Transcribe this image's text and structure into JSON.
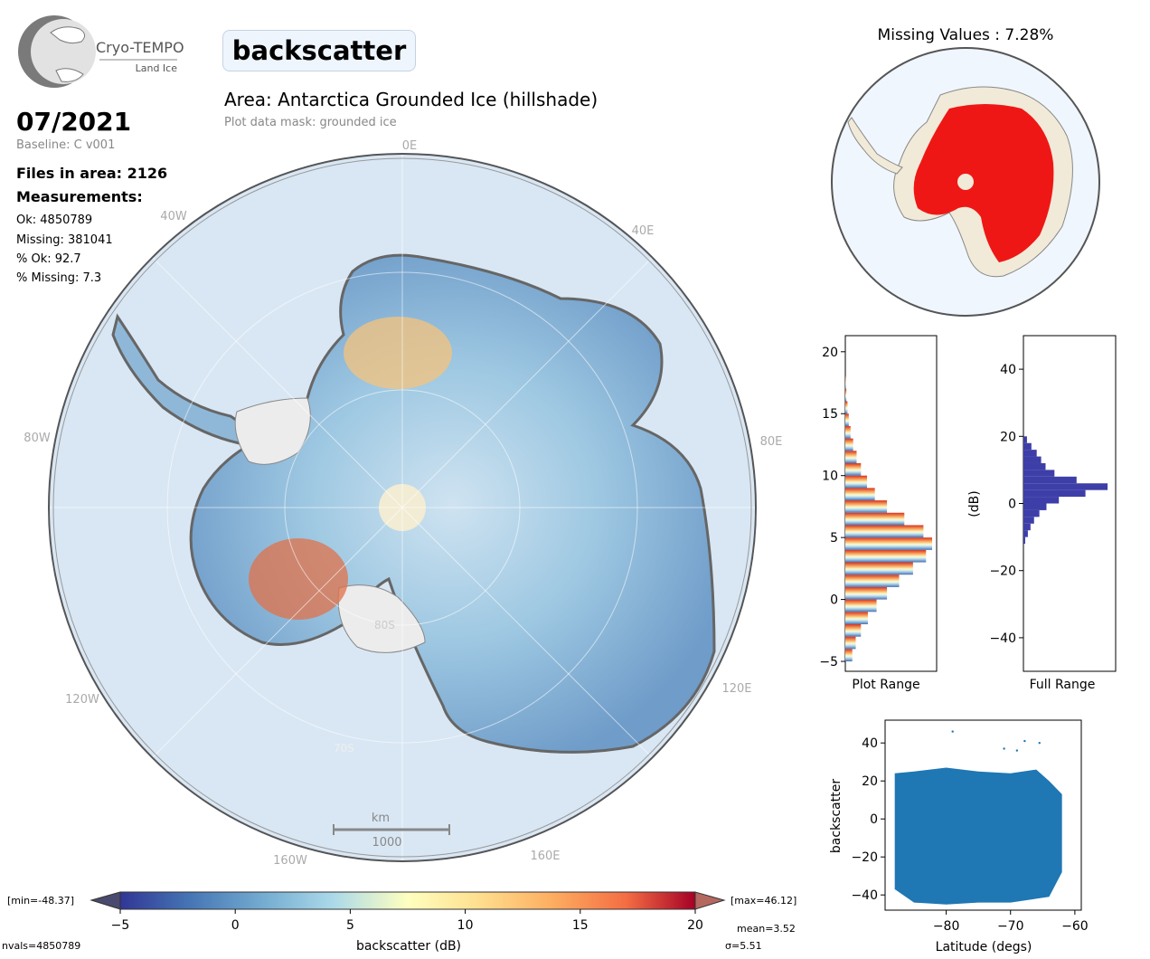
{
  "logo": {
    "name": "Cryo-TEMPO",
    "sub": "Land Ice"
  },
  "header": {
    "parameter": "backscatter",
    "area": "Area: Antarctica Grounded Ice (hillshade)",
    "mask": "Plot data mask: grounded ice"
  },
  "info": {
    "date": "07/2021",
    "baseline": "Baseline: C v001",
    "files": "Files in area: 2126",
    "measurements": "Measurements:",
    "ok": "Ok: 4850789",
    "missing": "Missing: 381041",
    "pct_ok": "% Ok: 92.7",
    "pct_missing": "% Missing: 7.3"
  },
  "map": {
    "lon_labels": [
      "0E",
      "40E",
      "80E",
      "120E",
      "160E",
      "160W",
      "120W",
      "80W",
      "40W"
    ],
    "lat_labels": [
      "80S",
      "70S"
    ],
    "scale_unit": "km",
    "scale_value": "1000"
  },
  "missing_map": {
    "title": "Missing Values : 7.28%"
  },
  "colorbar": {
    "min_label": "[min=-48.37]",
    "max_label": "[max=46.12]",
    "ticks": [
      "-5",
      "0",
      "5",
      "10",
      "15",
      "20"
    ],
    "label": "backscatter (dB)",
    "nvals": "nvals=4850789",
    "mean": "mean=3.52",
    "sigma": "σ=5.51"
  },
  "chart_data": [
    {
      "type": "bar",
      "title": "",
      "xlabel": "Plot Range",
      "ylabel": "",
      "orientation": "horizontal",
      "ylim": [
        -5.8,
        21.3
      ],
      "yticks": [
        -5,
        0,
        5,
        10,
        15,
        20
      ],
      "bins_y": [
        -5,
        -4,
        -3,
        -2,
        -1,
        0,
        1,
        2,
        3,
        4,
        5,
        6,
        7,
        8,
        9,
        10,
        11,
        12,
        13,
        14,
        15,
        16,
        17
      ],
      "counts": [
        0.08,
        0.12,
        0.18,
        0.26,
        0.36,
        0.48,
        0.62,
        0.78,
        0.93,
        1.0,
        0.9,
        0.68,
        0.48,
        0.34,
        0.25,
        0.18,
        0.13,
        0.09,
        0.06,
        0.04,
        0.025,
        0.012,
        0.004
      ]
    },
    {
      "type": "bar",
      "title": "",
      "xlabel": "Full Range",
      "ylabel": "(dB)",
      "orientation": "horizontal",
      "ylim": [
        -50,
        50
      ],
      "yticks": [
        -40,
        -20,
        0,
        20,
        40
      ],
      "bins_y": [
        -12,
        -10,
        -8,
        -6,
        -4,
        -2,
        0,
        2,
        4,
        6,
        8,
        10,
        12,
        14,
        16,
        18
      ],
      "counts": [
        0.02,
        0.05,
        0.08,
        0.12,
        0.18,
        0.26,
        0.4,
        0.7,
        0.95,
        0.6,
        0.35,
        0.25,
        0.2,
        0.15,
        0.09,
        0.04
      ]
    },
    {
      "type": "scatter",
      "title": "",
      "xlabel": "Latitude (degs)",
      "ylabel": "backscatter",
      "xlim": [
        -89.5,
        -59
      ],
      "ylim": [
        -48,
        52
      ],
      "xticks": [
        -80,
        -70,
        -60
      ],
      "yticks": [
        -40,
        -20,
        0,
        20,
        40
      ],
      "envelope": [
        {
          "x": -88,
          "ymin": -37,
          "ymax": 24
        },
        {
          "x": -85,
          "ymin": -44,
          "ymax": 25
        },
        {
          "x": -80,
          "ymin": -45,
          "ymax": 27
        },
        {
          "x": -75,
          "ymin": -44,
          "ymax": 25
        },
        {
          "x": -70,
          "ymin": -44,
          "ymax": 24
        },
        {
          "x": -66,
          "ymin": -42,
          "ymax": 26
        },
        {
          "x": -64,
          "ymin": -41,
          "ymax": 20
        },
        {
          "x": -62,
          "ymin": -28,
          "ymax": 13
        }
      ],
      "outliers": [
        {
          "x": -79,
          "y": 46
        },
        {
          "x": -67.8,
          "y": 41
        },
        {
          "x": -65.5,
          "y": 40
        },
        {
          "x": -71,
          "y": 37
        },
        {
          "x": -69,
          "y": 36
        }
      ]
    }
  ]
}
